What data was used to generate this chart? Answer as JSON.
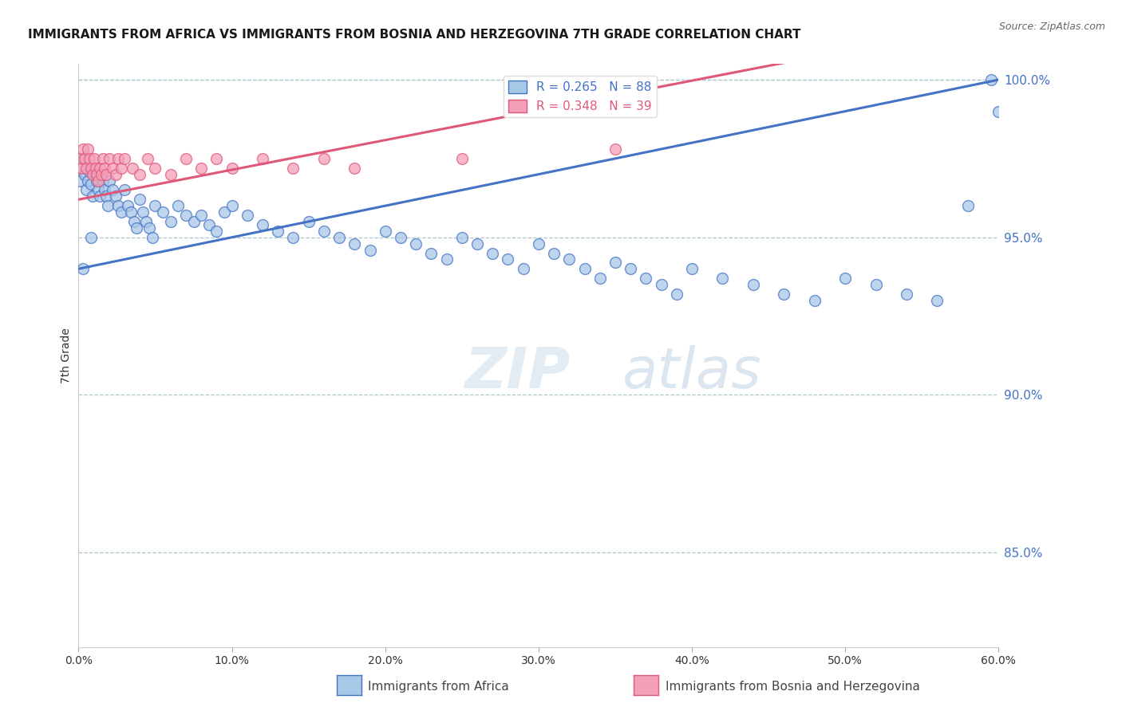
{
  "title": "IMMIGRANTS FROM AFRICA VS IMMIGRANTS FROM BOSNIA AND HERZEGOVINA 7TH GRADE CORRELATION CHART",
  "source": "Source: ZipAtlas.com",
  "xlabel_blue": "Immigrants from Africa",
  "xlabel_pink": "Immigrants from Bosnia and Herzegovina",
  "ylabel": "7th Grade",
  "xlim": [
    0.0,
    0.6
  ],
  "ylim": [
    0.82,
    1.005
  ],
  "yticks": [
    0.85,
    0.9,
    0.95,
    1.0
  ],
  "ytick_labels": [
    "85.0%",
    "90.0%",
    "95.0%",
    "100.0%"
  ],
  "xticks": [
    0.0,
    0.1,
    0.2,
    0.3,
    0.4,
    0.5,
    0.6
  ],
  "xtick_labels": [
    "0.0%",
    "10.0%",
    "20.0%",
    "30.0%",
    "40.0%",
    "50.0%",
    "60.0%"
  ],
  "R_blue": 0.265,
  "N_blue": 88,
  "R_pink": 0.348,
  "N_pink": 39,
  "blue_color": "#a8c8e8",
  "pink_color": "#f4a0b8",
  "blue_line_color": "#4472c4",
  "pink_line_color": "#e05878",
  "watermark_zip": "ZIP",
  "watermark_atlas": "atlas",
  "blue_x": [
    0.001,
    0.002,
    0.003,
    0.004,
    0.005,
    0.006,
    0.007,
    0.008,
    0.009,
    0.01,
    0.011,
    0.012,
    0.013,
    0.014,
    0.015,
    0.016,
    0.017,
    0.018,
    0.019,
    0.02,
    0.022,
    0.024,
    0.026,
    0.028,
    0.03,
    0.032,
    0.034,
    0.036,
    0.038,
    0.04,
    0.042,
    0.044,
    0.046,
    0.048,
    0.05,
    0.055,
    0.06,
    0.065,
    0.07,
    0.075,
    0.08,
    0.085,
    0.09,
    0.095,
    0.1,
    0.11,
    0.12,
    0.13,
    0.14,
    0.15,
    0.16,
    0.17,
    0.18,
    0.19,
    0.2,
    0.21,
    0.22,
    0.23,
    0.24,
    0.25,
    0.26,
    0.27,
    0.28,
    0.29,
    0.3,
    0.31,
    0.32,
    0.33,
    0.34,
    0.35,
    0.36,
    0.37,
    0.38,
    0.39,
    0.4,
    0.42,
    0.44,
    0.46,
    0.48,
    0.5,
    0.52,
    0.54,
    0.56,
    0.58,
    0.595,
    0.6,
    0.003,
    0.008
  ],
  "blue_y": [
    0.968,
    0.972,
    0.975,
    0.97,
    0.965,
    0.968,
    0.971,
    0.967,
    0.963,
    0.972,
    0.97,
    0.968,
    0.965,
    0.963,
    0.97,
    0.968,
    0.965,
    0.963,
    0.96,
    0.968,
    0.965,
    0.963,
    0.96,
    0.958,
    0.965,
    0.96,
    0.958,
    0.955,
    0.953,
    0.962,
    0.958,
    0.955,
    0.953,
    0.95,
    0.96,
    0.958,
    0.955,
    0.96,
    0.957,
    0.955,
    0.957,
    0.954,
    0.952,
    0.958,
    0.96,
    0.957,
    0.954,
    0.952,
    0.95,
    0.955,
    0.952,
    0.95,
    0.948,
    0.946,
    0.952,
    0.95,
    0.948,
    0.945,
    0.943,
    0.95,
    0.948,
    0.945,
    0.943,
    0.94,
    0.948,
    0.945,
    0.943,
    0.94,
    0.937,
    0.942,
    0.94,
    0.937,
    0.935,
    0.932,
    0.94,
    0.937,
    0.935,
    0.932,
    0.93,
    0.937,
    0.935,
    0.932,
    0.93,
    0.96,
    1.0,
    0.99,
    0.94,
    0.95
  ],
  "pink_x": [
    0.001,
    0.002,
    0.003,
    0.004,
    0.005,
    0.006,
    0.007,
    0.008,
    0.009,
    0.01,
    0.011,
    0.012,
    0.013,
    0.014,
    0.015,
    0.016,
    0.017,
    0.018,
    0.02,
    0.022,
    0.024,
    0.026,
    0.028,
    0.03,
    0.035,
    0.04,
    0.045,
    0.05,
    0.06,
    0.07,
    0.08,
    0.09,
    0.1,
    0.12,
    0.14,
    0.16,
    0.18,
    0.25,
    0.35
  ],
  "pink_y": [
    0.975,
    0.972,
    0.978,
    0.975,
    0.972,
    0.978,
    0.975,
    0.972,
    0.97,
    0.975,
    0.972,
    0.97,
    0.968,
    0.972,
    0.97,
    0.975,
    0.972,
    0.97,
    0.975,
    0.972,
    0.97,
    0.975,
    0.972,
    0.975,
    0.972,
    0.97,
    0.975,
    0.972,
    0.97,
    0.975,
    0.972,
    0.975,
    0.972,
    0.975,
    0.972,
    0.975,
    0.972,
    0.975,
    0.978
  ]
}
